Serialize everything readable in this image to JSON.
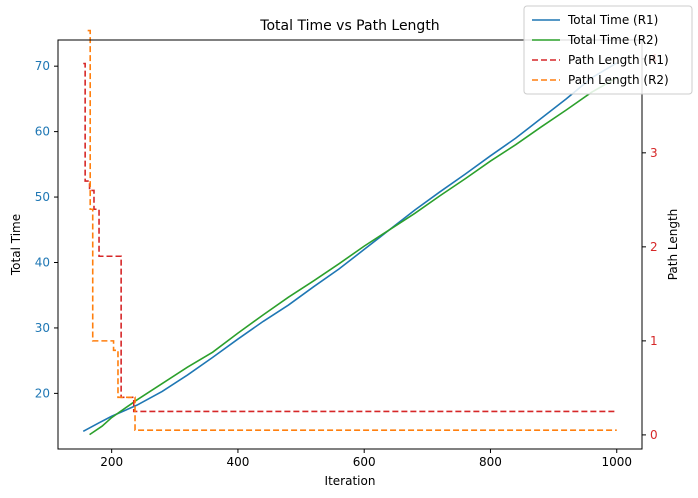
{
  "chart_data": {
    "type": "line",
    "title": "Total Time vs Path Length",
    "xlabel": "Iteration",
    "ylabel": "Total Time",
    "y2label": "Path Length",
    "xlim": [
      115,
      1040
    ],
    "ylim": [
      11.5,
      74
    ],
    "y2lim": [
      -0.15,
      4.2
    ],
    "xticks": [
      200,
      400,
      600,
      800,
      1000
    ],
    "yticks": [
      20,
      30,
      40,
      50,
      60,
      70
    ],
    "y2ticks": [
      0,
      1,
      2,
      3,
      4
    ],
    "legend_position": "top-right",
    "grid": false,
    "colors": {
      "total_r1": "#1f77b4",
      "total_r2": "#2ca02c",
      "path_r1": "#d62728",
      "path_r2": "#ff7f0e",
      "left_axis": "#1f77b4",
      "right_axis": "#d62728"
    },
    "series": [
      {
        "name": "Total Time (R1)",
        "axis": "left",
        "style": "solid",
        "x": [
          155,
          180,
          200,
          240,
          280,
          320,
          360,
          400,
          440,
          480,
          520,
          560,
          600,
          640,
          680,
          720,
          760,
          800,
          840,
          880,
          920,
          960,
          1000
        ],
        "y": [
          14.2,
          15.5,
          16.5,
          18.2,
          20.3,
          22.8,
          25.5,
          28.3,
          31.0,
          33.5,
          36.3,
          39.0,
          42.0,
          45.0,
          48.0,
          50.8,
          53.5,
          56.3,
          59.0,
          62.0,
          65.0,
          68.2,
          70.5
        ]
      },
      {
        "name": "Total Time (R2)",
        "axis": "left",
        "style": "solid",
        "x": [
          165,
          185,
          200,
          240,
          280,
          320,
          360,
          400,
          440,
          480,
          520,
          560,
          600,
          640,
          680,
          720,
          760,
          800,
          840,
          880,
          920,
          960,
          1000
        ],
        "y": [
          13.7,
          15.0,
          16.3,
          19.0,
          21.5,
          24.0,
          26.3,
          29.2,
          32.0,
          34.7,
          37.2,
          39.8,
          42.5,
          45.0,
          47.5,
          50.2,
          52.8,
          55.5,
          58.0,
          60.7,
          63.3,
          66.0,
          68.2
        ]
      },
      {
        "name": "Path Length (R1)",
        "axis": "right",
        "style": "dashed-step",
        "x": [
          155,
          158,
          165,
          172,
          180,
          205,
          215,
          235,
          1000
        ],
        "y": [
          3.95,
          2.7,
          2.6,
          2.4,
          1.9,
          1.9,
          0.4,
          0.25,
          0.25
        ]
      },
      {
        "name": "Path Length (R2)",
        "axis": "right",
        "style": "dashed-step",
        "x": [
          162,
          166,
          170,
          195,
          203,
          210,
          237,
          1000
        ],
        "y": [
          4.3,
          2.4,
          1.0,
          1.0,
          0.9,
          0.4,
          0.05,
          0.05
        ]
      }
    ]
  }
}
